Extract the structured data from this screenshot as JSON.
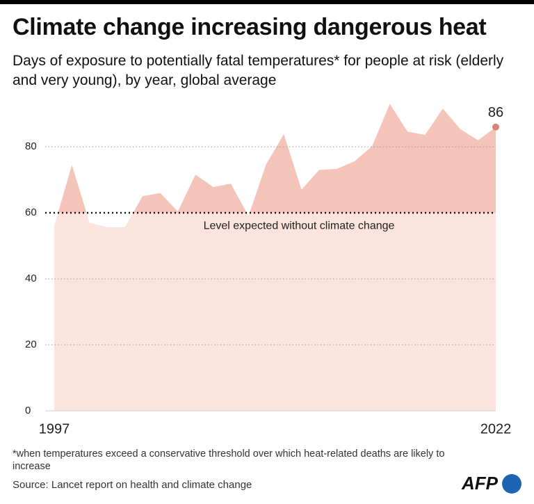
{
  "chart_data": {
    "type": "area",
    "title": "Climate change increasing dangerous heat",
    "subtitle": "Days of exposure to potentially fatal temperatures* for people at risk (elderly and very young), by year, global average",
    "x": [
      1997,
      1998,
      1999,
      2000,
      2001,
      2002,
      2003,
      2004,
      2005,
      2006,
      2007,
      2008,
      2009,
      2010,
      2011,
      2012,
      2013,
      2014,
      2015,
      2016,
      2017,
      2018,
      2019,
      2020,
      2021,
      2022
    ],
    "series": [
      {
        "name": "Days of exposure",
        "color": "#f4c3b9",
        "values": [
          56,
          74.5,
          57,
          55.6,
          55.6,
          65,
          66,
          60.4,
          71.6,
          67.8,
          68.8,
          59,
          74.7,
          83.8,
          67,
          73,
          73.3,
          75.6,
          80.2,
          93,
          84.6,
          83.6,
          91.6,
          85.3,
          82,
          86
        ]
      }
    ],
    "reference_line": {
      "value": 60,
      "label": "Level expected without climate change"
    },
    "below_color": "#fbe4dd",
    "marker_color": "#d9847a",
    "xlim": [
      1997,
      2022
    ],
    "xticks": [
      1997,
      2022
    ],
    "ylim": [
      0,
      95
    ],
    "yticks": [
      0,
      20,
      40,
      60,
      80
    ],
    "grid": true,
    "footnote": "*when temperatures exceed a conservative threshold over which heat-related deaths are likely to increase",
    "source": "Source: Lancet report on health and climate change",
    "logo": "AFP"
  }
}
